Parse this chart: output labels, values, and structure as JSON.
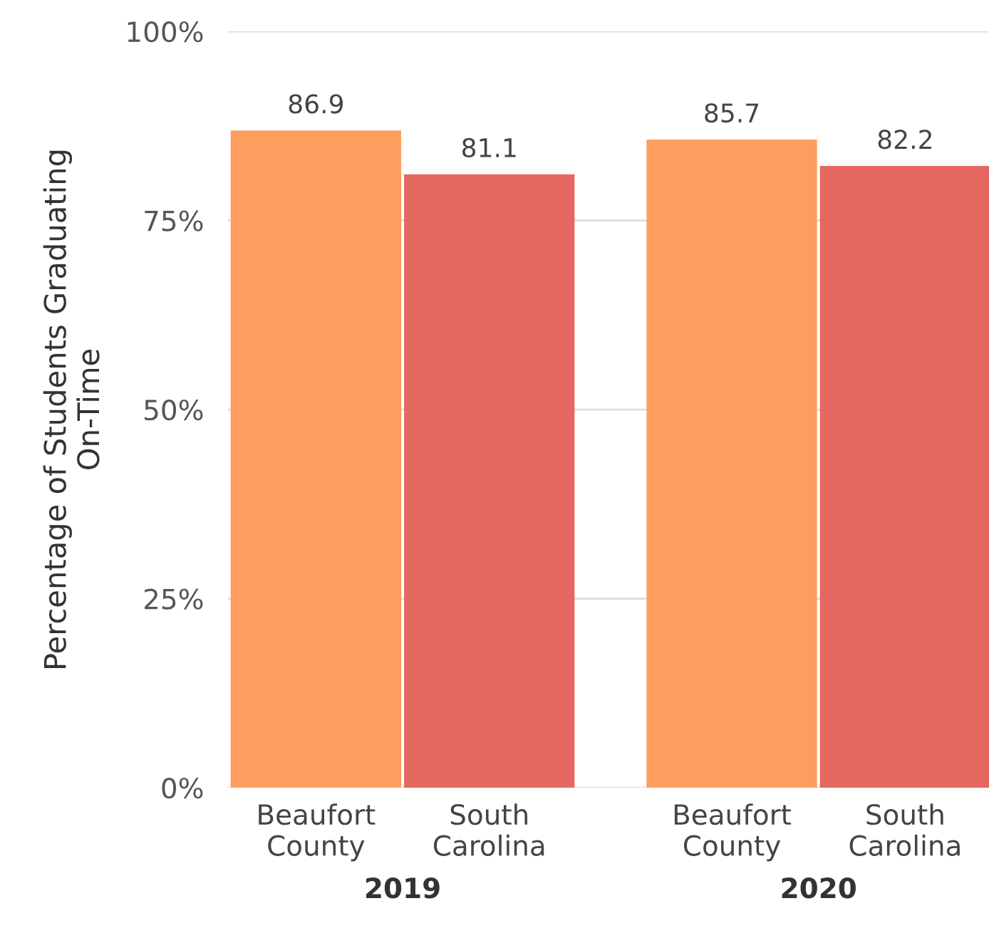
{
  "chart_data": {
    "type": "bar",
    "ylabel": "Percentage of Students Graduating\nOn-Time",
    "categories": [
      "2019",
      "2020"
    ],
    "series": [
      {
        "name": "Beaufort\nCounty",
        "color": "#fd9e5f",
        "values": [
          86.9,
          85.7
        ]
      },
      {
        "name": "South\nCarolina",
        "color": "#e4685f",
        "values": [
          81.1,
          82.2
        ]
      }
    ],
    "ylim": [
      0,
      100
    ],
    "yticks": [
      {
        "value": 0,
        "label": "0%"
      },
      {
        "value": 25,
        "label": "25%"
      },
      {
        "value": 50,
        "label": "50%"
      },
      {
        "value": 75,
        "label": "75%"
      },
      {
        "value": 100,
        "label": "100%"
      }
    ],
    "grid": "y",
    "data_labels": true,
    "legend": false
  }
}
